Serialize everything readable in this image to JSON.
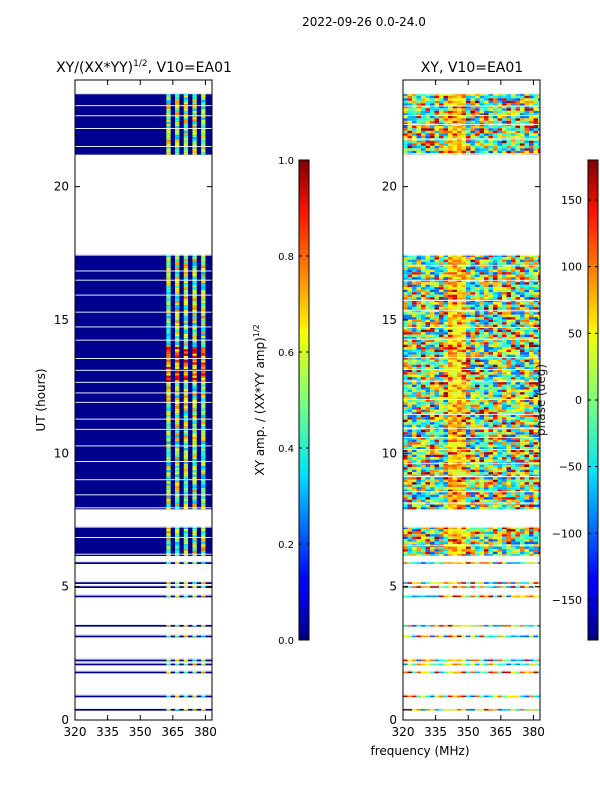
{
  "figure": {
    "suptitle": "2022-09-26 0.0-24.0",
    "shared_xlabel": "frequency (MHz)"
  },
  "chart_data": [
    {
      "type": "heatmap",
      "title": "XY/(XX*YY)",
      "title_superscript": "1/2",
      "title_suffix": ", V10=EA01",
      "xlabel": "",
      "ylabel": "UT (hours)",
      "xlim": [
        320,
        383
      ],
      "ylim": [
        0,
        24
      ],
      "xticks": [
        320,
        335,
        350,
        365,
        380
      ],
      "yticks": [
        0,
        5,
        10,
        15,
        20
      ],
      "data_rows_hours": [
        [
          0.35,
          0.45
        ],
        [
          0.85,
          0.95
        ],
        [
          1.75,
          1.85
        ],
        [
          2.05,
          2.15
        ],
        [
          2.2,
          2.3
        ],
        [
          3.1,
          3.2
        ],
        [
          3.5,
          3.6
        ],
        [
          4.6,
          4.7
        ],
        [
          4.95,
          5.05
        ],
        [
          5.1,
          5.2
        ],
        [
          5.85,
          5.95
        ],
        [
          6.15,
          7.25
        ],
        [
          7.9,
          17.45
        ],
        [
          21.2,
          23.5
        ]
      ],
      "colorbar": {
        "label": "XY amp. / (XX*YY amp)",
        "label_superscript": "1/2",
        "range": [
          0.0,
          1.0
        ],
        "ticks": [
          "0.0",
          "0.2",
          "0.4",
          "0.6",
          "0.8",
          "1.0"
        ],
        "colormap": "jet"
      }
    },
    {
      "type": "heatmap",
      "title": "XY, V10=EA01",
      "xlabel": "frequency (MHz)",
      "ylabel": "",
      "xlim": [
        320,
        383
      ],
      "ylim": [
        0,
        24
      ],
      "xticks": [
        320,
        335,
        350,
        365,
        380
      ],
      "yticks": [
        0,
        5,
        10,
        15,
        20
      ],
      "data_rows_hours": [
        [
          0.35,
          0.45
        ],
        [
          0.85,
          0.95
        ],
        [
          1.75,
          1.85
        ],
        [
          2.05,
          2.15
        ],
        [
          2.2,
          2.3
        ],
        [
          3.1,
          3.2
        ],
        [
          3.5,
          3.6
        ],
        [
          4.6,
          4.7
        ],
        [
          4.95,
          5.05
        ],
        [
          5.1,
          5.2
        ],
        [
          5.85,
          5.95
        ],
        [
          6.15,
          7.25
        ],
        [
          7.9,
          17.45
        ],
        [
          21.2,
          23.5
        ]
      ],
      "colorbar": {
        "label": "phase (deg)",
        "range": [
          -180,
          180
        ],
        "ticks": [
          "−150",
          "−100",
          "−50",
          "0",
          "50",
          "100",
          "150"
        ],
        "colormap": "jet"
      }
    }
  ]
}
